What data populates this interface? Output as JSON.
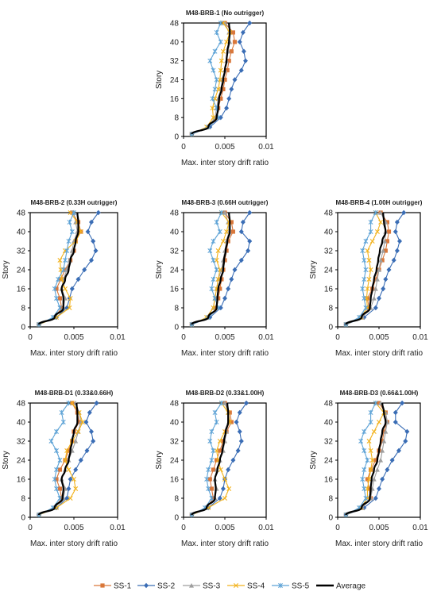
{
  "figure": {
    "colors": {
      "SS-1": "#d9773a",
      "SS-2": "#3a6db5",
      "SS-3": "#9e9e9e",
      "SS-4": "#f2b21c",
      "SS-5": "#5ea3d6",
      "Average": "#000000"
    },
    "markers": {
      "SS-1": "square",
      "SS-2": "diamond",
      "SS-3": "triangle",
      "SS-4": "x",
      "SS-5": "asterisk",
      "Average": "none"
    },
    "legend": [
      "SS-1",
      "SS-2",
      "SS-3",
      "SS-4",
      "SS-5",
      "Average"
    ]
  },
  "chart_data": [
    {
      "type": "line",
      "title": "M48-BRB-1 (No outrigger)",
      "xlabel": "Max. inter story drift ratio",
      "ylabel": "Story",
      "xlim": [
        0,
        0.01
      ],
      "ylim": [
        0,
        48
      ],
      "xticks": [
        "0",
        "0.005",
        "0.01"
      ],
      "yticks": [
        "0",
        "8",
        "16",
        "24",
        "32",
        "40",
        "48"
      ],
      "y": [
        1,
        4,
        8,
        12,
        16,
        20,
        24,
        28,
        32,
        36,
        40,
        44,
        48
      ],
      "series": [
        {
          "name": "SS-1",
          "x": [
            0.001,
            0.003,
            0.004,
            0.0042,
            0.0045,
            0.0048,
            0.005,
            0.0053,
            0.0055,
            0.0058,
            0.0062,
            0.006,
            0.005
          ]
        },
        {
          "name": "SS-2",
          "x": [
            0.001,
            0.0032,
            0.0045,
            0.0052,
            0.0055,
            0.0058,
            0.0062,
            0.007,
            0.0075,
            0.0073,
            0.0068,
            0.0072,
            0.008
          ]
        },
        {
          "name": "SS-3",
          "x": [
            0.001,
            0.003,
            0.0038,
            0.004,
            0.0042,
            0.0045,
            0.0047,
            0.005,
            0.0052,
            0.0054,
            0.0056,
            0.0055,
            0.005
          ]
        },
        {
          "name": "SS-4",
          "x": [
            0.001,
            0.0028,
            0.0036,
            0.0035,
            0.0038,
            0.0042,
            0.0044,
            0.0045,
            0.0046,
            0.0048,
            0.0052,
            0.0056,
            0.0048
          ]
        },
        {
          "name": "SS-5",
          "x": [
            0.001,
            0.003,
            0.0042,
            0.004,
            0.0035,
            0.0038,
            0.004,
            0.0036,
            0.0032,
            0.0038,
            0.0045,
            0.004,
            0.0045
          ]
        },
        {
          "name": "Average",
          "x": [
            0.001,
            0.003,
            0.004,
            0.0042,
            0.0043,
            0.0046,
            0.0048,
            0.005,
            0.0052,
            0.0053,
            0.0055,
            0.0056,
            0.0055
          ]
        }
      ]
    },
    {
      "type": "line",
      "title": "M48-BRB-2 (0.33H outrigger)",
      "xlabel": "Max. inter story drift ratio",
      "ylabel": "Story",
      "xlim": [
        0,
        0.01
      ],
      "ylim": [
        0,
        48
      ],
      "xticks": [
        "0",
        "0.005",
        "0.01"
      ],
      "yticks": [
        "0",
        "8",
        "16",
        "24",
        "32",
        "40",
        "48"
      ],
      "y": [
        1,
        4,
        8,
        12,
        16,
        20,
        24,
        28,
        32,
        36,
        40,
        44,
        48
      ],
      "series": [
        {
          "name": "SS-1",
          "x": [
            0.001,
            0.0028,
            0.0036,
            0.0034,
            0.003,
            0.0035,
            0.004,
            0.0046,
            0.005,
            0.0052,
            0.0058,
            0.0055,
            0.0048
          ]
        },
        {
          "name": "SS-2",
          "x": [
            0.001,
            0.003,
            0.0042,
            0.0045,
            0.0048,
            0.0055,
            0.0062,
            0.007,
            0.0075,
            0.0072,
            0.0066,
            0.007,
            0.0078
          ]
        },
        {
          "name": "SS-3",
          "x": [
            0.001,
            0.0028,
            0.0038,
            0.004,
            0.0036,
            0.0038,
            0.0042,
            0.0045,
            0.0048,
            0.005,
            0.0054,
            0.0052,
            0.005
          ]
        },
        {
          "name": "SS-4",
          "x": [
            0.001,
            0.003,
            0.0045,
            0.0046,
            0.004,
            0.0036,
            0.0035,
            0.0034,
            0.004,
            0.0052,
            0.0058,
            0.0054,
            0.0046
          ]
        },
        {
          "name": "SS-5",
          "x": [
            0.001,
            0.0026,
            0.0034,
            0.003,
            0.0028,
            0.0032,
            0.0038,
            0.004,
            0.0042,
            0.0044,
            0.0048,
            0.0045,
            0.005
          ]
        },
        {
          "name": "Average",
          "x": [
            0.001,
            0.0028,
            0.0038,
            0.0038,
            0.0036,
            0.004,
            0.0044,
            0.0046,
            0.005,
            0.0052,
            0.0055,
            0.0055,
            0.0054
          ]
        }
      ]
    },
    {
      "type": "line",
      "title": "M48-BRB-3 (0.66H outrigger)",
      "xlabel": "Max. inter story drift ratio",
      "ylabel": "Story",
      "xlim": [
        0,
        0.01
      ],
      "ylim": [
        0,
        48
      ],
      "xticks": [
        "0",
        "0.005",
        "0.01"
      ],
      "yticks": [
        "0",
        "8",
        "16",
        "24",
        "32",
        "40",
        "48"
      ],
      "y": [
        1,
        4,
        8,
        12,
        16,
        20,
        24,
        28,
        32,
        36,
        40,
        44,
        48
      ],
      "series": [
        {
          "name": "SS-1",
          "x": [
            0.001,
            0.003,
            0.004,
            0.0042,
            0.0044,
            0.0046,
            0.0048,
            0.005,
            0.0052,
            0.0054,
            0.006,
            0.0058,
            0.005
          ]
        },
        {
          "name": "SS-2",
          "x": [
            0.001,
            0.0032,
            0.0045,
            0.005,
            0.0054,
            0.0058,
            0.0062,
            0.007,
            0.0078,
            0.008,
            0.007,
            0.0072,
            0.008
          ]
        },
        {
          "name": "SS-3",
          "x": [
            0.001,
            0.0028,
            0.0036,
            0.0038,
            0.004,
            0.0042,
            0.0046,
            0.0048,
            0.005,
            0.0052,
            0.0055,
            0.0054,
            0.005
          ]
        },
        {
          "name": "SS-4",
          "x": [
            0.001,
            0.0028,
            0.0036,
            0.0038,
            0.004,
            0.0042,
            0.0044,
            0.004,
            0.0042,
            0.0048,
            0.0052,
            0.0055,
            0.0046
          ]
        },
        {
          "name": "SS-5",
          "x": [
            0.001,
            0.003,
            0.0042,
            0.0038,
            0.0034,
            0.0036,
            0.004,
            0.0036,
            0.0032,
            0.0036,
            0.0044,
            0.004,
            0.0046
          ]
        },
        {
          "name": "Average",
          "x": [
            0.001,
            0.003,
            0.004,
            0.0041,
            0.0042,
            0.0045,
            0.0048,
            0.0049,
            0.0051,
            0.0053,
            0.0056,
            0.0056,
            0.0055
          ]
        }
      ]
    },
    {
      "type": "line",
      "title": "M48-BRB-4 (1.00H outrigger)",
      "xlabel": "Max. inter story drift ratio",
      "ylabel": "Story",
      "xlim": [
        0,
        0.01
      ],
      "ylim": [
        0,
        48
      ],
      "xticks": [
        "0",
        "0.005",
        "0.01"
      ],
      "yticks": [
        "0",
        "8",
        "16",
        "24",
        "32",
        "40",
        "48"
      ],
      "y": [
        1,
        4,
        8,
        12,
        16,
        20,
        24,
        28,
        32,
        36,
        40,
        44,
        48
      ],
      "series": [
        {
          "name": "SS-1",
          "x": [
            0.001,
            0.003,
            0.0038,
            0.0036,
            0.0042,
            0.0046,
            0.005,
            0.0054,
            0.0058,
            0.006,
            0.0062,
            0.006,
            0.0052
          ]
        },
        {
          "name": "SS-2",
          "x": [
            0.001,
            0.0032,
            0.0046,
            0.005,
            0.0055,
            0.0058,
            0.0062,
            0.0068,
            0.0072,
            0.0075,
            0.007,
            0.0072,
            0.008
          ]
        },
        {
          "name": "SS-3",
          "x": [
            0.001,
            0.003,
            0.004,
            0.0044,
            0.0046,
            0.0048,
            0.005,
            0.0052,
            0.0055,
            0.0057,
            0.0058,
            0.0058,
            0.0052
          ]
        },
        {
          "name": "SS-4",
          "x": [
            0.001,
            0.0028,
            0.0036,
            0.0035,
            0.0036,
            0.0038,
            0.004,
            0.0038,
            0.0036,
            0.0042,
            0.0048,
            0.0052,
            0.0046
          ]
        },
        {
          "name": "SS-5",
          "x": [
            0.001,
            0.0026,
            0.0034,
            0.0032,
            0.003,
            0.0032,
            0.0034,
            0.0032,
            0.003,
            0.0034,
            0.004,
            0.004,
            0.0046
          ]
        },
        {
          "name": "Average",
          "x": [
            0.001,
            0.0029,
            0.0039,
            0.004,
            0.0042,
            0.0044,
            0.0047,
            0.0049,
            0.0051,
            0.0054,
            0.0058,
            0.0056,
            0.0055
          ]
        }
      ]
    },
    {
      "type": "line",
      "title": "M48-BRB-D1 (0.33&0.66H)",
      "xlabel": "Max. inter story drift ratio",
      "ylabel": "Story",
      "xlim": [
        0,
        0.01
      ],
      "ylim": [
        0,
        48
      ],
      "xticks": [
        "0",
        "0.005",
        "0.01"
      ],
      "yticks": [
        "0",
        "8",
        "16",
        "24",
        "32",
        "40",
        "48"
      ],
      "y": [
        1,
        4,
        8,
        12,
        16,
        20,
        24,
        28,
        32,
        36,
        40,
        44,
        48
      ],
      "series": [
        {
          "name": "SS-1",
          "x": [
            0.001,
            0.0028,
            0.0036,
            0.0034,
            0.003,
            0.0034,
            0.004,
            0.0044,
            0.0048,
            0.005,
            0.0056,
            0.0054,
            0.0048
          ]
        },
        {
          "name": "SS-2",
          "x": [
            0.001,
            0.003,
            0.0042,
            0.0044,
            0.0046,
            0.0052,
            0.0058,
            0.0065,
            0.0072,
            0.007,
            0.0064,
            0.0068,
            0.0076
          ]
        },
        {
          "name": "SS-3",
          "x": [
            0.001,
            0.0028,
            0.0038,
            0.004,
            0.0036,
            0.004,
            0.0044,
            0.0048,
            0.0052,
            0.0055,
            0.0058,
            0.0056,
            0.0052
          ]
        },
        {
          "name": "SS-4",
          "x": [
            0.001,
            0.003,
            0.0046,
            0.0052,
            0.005,
            0.0044,
            0.004,
            0.0042,
            0.0048,
            0.0055,
            0.006,
            0.0056,
            0.0048
          ]
        },
        {
          "name": "SS-5",
          "x": [
            0.001,
            0.0026,
            0.0034,
            0.003,
            0.0028,
            0.003,
            0.0034,
            0.003,
            0.0024,
            0.003,
            0.0038,
            0.0036,
            0.0044
          ]
        },
        {
          "name": "Average",
          "x": [
            0.001,
            0.0028,
            0.0037,
            0.0038,
            0.0036,
            0.004,
            0.0044,
            0.0046,
            0.0048,
            0.005,
            0.0054,
            0.0054,
            0.0053
          ]
        }
      ]
    },
    {
      "type": "line",
      "title": "M48-BRB-D2 (0.33&1.00H)",
      "xlabel": "Max. inter story drift ratio",
      "ylabel": "Story",
      "xlim": [
        0,
        0.01
      ],
      "ylim": [
        0,
        48
      ],
      "xticks": [
        "0",
        "0.005",
        "0.01"
      ],
      "yticks": [
        "0",
        "8",
        "16",
        "24",
        "32",
        "40",
        "48"
      ],
      "y": [
        1,
        4,
        8,
        12,
        16,
        20,
        24,
        28,
        32,
        36,
        40,
        44,
        48
      ],
      "series": [
        {
          "name": "SS-1",
          "x": [
            0.001,
            0.0028,
            0.0036,
            0.0034,
            0.0032,
            0.0036,
            0.004,
            0.0044,
            0.0048,
            0.0052,
            0.0058,
            0.0056,
            0.005
          ]
        },
        {
          "name": "SS-2",
          "x": [
            0.001,
            0.003,
            0.0044,
            0.0048,
            0.005,
            0.0054,
            0.006,
            0.0066,
            0.007,
            0.0068,
            0.0064,
            0.0068,
            0.0076
          ]
        },
        {
          "name": "SS-3",
          "x": [
            0.001,
            0.0028,
            0.0038,
            0.004,
            0.0038,
            0.004,
            0.0044,
            0.0048,
            0.005,
            0.0052,
            0.0055,
            0.0054,
            0.005
          ]
        },
        {
          "name": "SS-4",
          "x": [
            0.001,
            0.003,
            0.005,
            0.0055,
            0.005,
            0.0045,
            0.0042,
            0.004,
            0.0044,
            0.005,
            0.0056,
            0.0054,
            0.0046
          ]
        },
        {
          "name": "SS-5",
          "x": [
            0.001,
            0.0026,
            0.0034,
            0.003,
            0.0028,
            0.003,
            0.0034,
            0.0036,
            0.0032,
            0.0034,
            0.004,
            0.0038,
            0.0046
          ]
        },
        {
          "name": "Average",
          "x": [
            0.001,
            0.0028,
            0.0038,
            0.0039,
            0.0038,
            0.0041,
            0.0044,
            0.0047,
            0.0049,
            0.0051,
            0.0054,
            0.0054,
            0.0053
          ]
        }
      ]
    },
    {
      "type": "line",
      "title": "M48-BRB-D3 (0.66&1.00H)",
      "xlabel": "Max. inter story drift ratio",
      "ylabel": "Story",
      "xlim": [
        0,
        0.01
      ],
      "ylim": [
        0,
        48
      ],
      "xticks": [
        "0",
        "0.005",
        "0.01"
      ],
      "yticks": [
        "0",
        "8",
        "16",
        "24",
        "32",
        "40",
        "48"
      ],
      "y": [
        1,
        4,
        8,
        12,
        16,
        20,
        24,
        28,
        32,
        36,
        40,
        44,
        48
      ],
      "series": [
        {
          "name": "SS-1",
          "x": [
            0.001,
            0.003,
            0.004,
            0.0038,
            0.0036,
            0.004,
            0.0046,
            0.005,
            0.0054,
            0.0056,
            0.006,
            0.0058,
            0.005
          ]
        },
        {
          "name": "SS-2",
          "x": [
            0.001,
            0.0032,
            0.0046,
            0.005,
            0.0054,
            0.006,
            0.0066,
            0.0074,
            0.0082,
            0.0084,
            0.007,
            0.007,
            0.0078
          ]
        },
        {
          "name": "SS-3",
          "x": [
            0.001,
            0.003,
            0.004,
            0.0042,
            0.0044,
            0.0048,
            0.0052,
            0.0054,
            0.0056,
            0.0058,
            0.006,
            0.0058,
            0.0052
          ]
        },
        {
          "name": "SS-4",
          "x": [
            0.001,
            0.0028,
            0.0036,
            0.0036,
            0.0038,
            0.004,
            0.0042,
            0.004,
            0.0038,
            0.0044,
            0.005,
            0.0056,
            0.0046
          ]
        },
        {
          "name": "SS-5",
          "x": [
            0.001,
            0.0026,
            0.0034,
            0.0032,
            0.003,
            0.0032,
            0.0036,
            0.0032,
            0.0028,
            0.0032,
            0.004,
            0.004,
            0.0046
          ]
        },
        {
          "name": "Average",
          "x": [
            0.001,
            0.0029,
            0.0039,
            0.004,
            0.0041,
            0.0044,
            0.0048,
            0.005,
            0.0052,
            0.0054,
            0.0058,
            0.0056,
            0.0054
          ]
        }
      ]
    }
  ]
}
